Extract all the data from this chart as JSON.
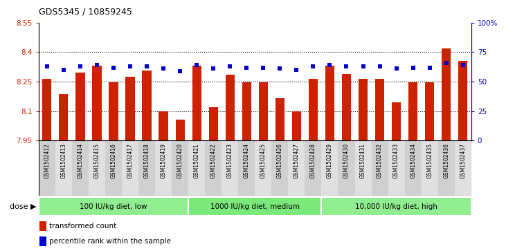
{
  "title": "GDS5345 / 10859245",
  "samples": [
    "GSM1502412",
    "GSM1502413",
    "GSM1502414",
    "GSM1502415",
    "GSM1502416",
    "GSM1502417",
    "GSM1502418",
    "GSM1502419",
    "GSM1502420",
    "GSM1502421",
    "GSM1502422",
    "GSM1502423",
    "GSM1502424",
    "GSM1502425",
    "GSM1502426",
    "GSM1502427",
    "GSM1502428",
    "GSM1502429",
    "GSM1502430",
    "GSM1502431",
    "GSM1502432",
    "GSM1502433",
    "GSM1502434",
    "GSM1502435",
    "GSM1502436",
    "GSM1502437"
  ],
  "bar_values": [
    8.265,
    8.185,
    8.295,
    8.33,
    8.245,
    8.275,
    8.305,
    8.1,
    8.055,
    8.33,
    8.12,
    8.285,
    8.245,
    8.245,
    8.165,
    8.1,
    8.265,
    8.33,
    8.29,
    8.265,
    8.265,
    8.145,
    8.245,
    8.245,
    8.42,
    8.355
  ],
  "percentile_values": [
    63,
    60,
    63,
    64,
    62,
    63,
    63,
    61,
    59,
    64,
    61,
    63,
    62,
    62,
    61,
    60,
    63,
    64,
    63,
    63,
    63,
    61,
    62,
    62,
    66,
    64
  ],
  "groups": [
    {
      "label": "100 IU/kg diet, low",
      "start": 0,
      "end": 9
    },
    {
      "label": "1000 IU/kg diet, medium",
      "start": 9,
      "end": 17
    },
    {
      "label": "10,000 IU/kg diet, high",
      "start": 17,
      "end": 26
    }
  ],
  "group_colors": [
    "#90EE90",
    "#7BE87B",
    "#90EE90"
  ],
  "y_min": 7.95,
  "y_max": 8.55,
  "y_ticks": [
    7.95,
    8.1,
    8.25,
    8.4,
    8.55
  ],
  "right_y_ticks": [
    0,
    25,
    50,
    75,
    100
  ],
  "right_y_labels": [
    "0",
    "25",
    "50",
    "75",
    "100%"
  ],
  "bar_color": "#CC2200",
  "dot_color": "#0000CC",
  "bar_bottom": 7.95,
  "gridlines": [
    8.1,
    8.25,
    8.4
  ],
  "dose_label": "dose",
  "legend_items": [
    {
      "color": "#CC2200",
      "label": "transformed count"
    },
    {
      "color": "#0000CC",
      "label": "percentile rank within the sample"
    }
  ]
}
